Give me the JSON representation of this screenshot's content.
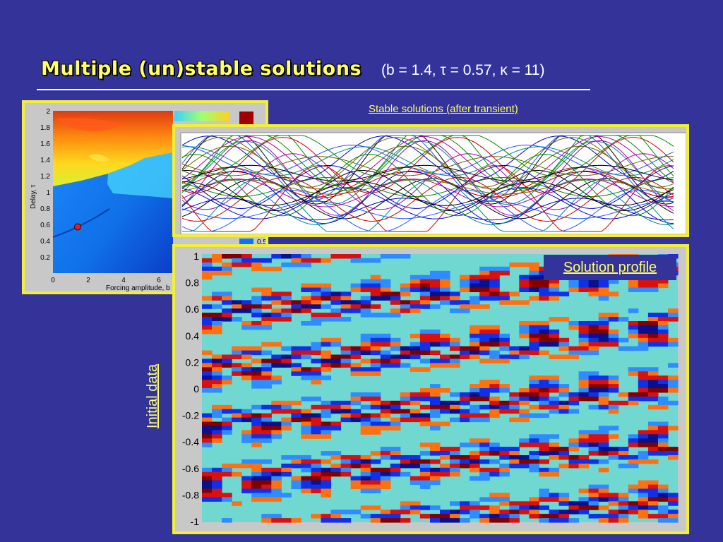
{
  "slide": {
    "title": "Multiple (un)stable solutions",
    "params": "(b = 1.4, τ = 0.57, κ = 11)"
  },
  "stability_map": {
    "ylabel": "Delay, τ",
    "xlabel": "Forcing amplitude, b",
    "y_ticks": [
      "2",
      "1.8",
      "1.6",
      "1.4",
      "1.2",
      "1",
      "0.8",
      "0.6",
      "0.4",
      "0.2"
    ],
    "x_ticks": [
      "0",
      "2",
      "4",
      "6"
    ],
    "colorbar_tick": "0.5",
    "marker": {
      "b": 1.4,
      "tau": 0.57
    }
  },
  "stable_plot": {
    "label": "Stable solutions (after transient)"
  },
  "profile_plot": {
    "label": "Solution profile",
    "ylabel": "Initial data",
    "y_ticks": [
      "1",
      "0.8",
      "0.6",
      "0.4",
      "0.2",
      "0",
      "-0.2",
      "-0.4",
      "-0.6",
      "-0.8",
      "-1"
    ]
  },
  "colors": {
    "background": "#33339a",
    "frame": "#f2ef3a",
    "accent_text": "#ffff66"
  }
}
